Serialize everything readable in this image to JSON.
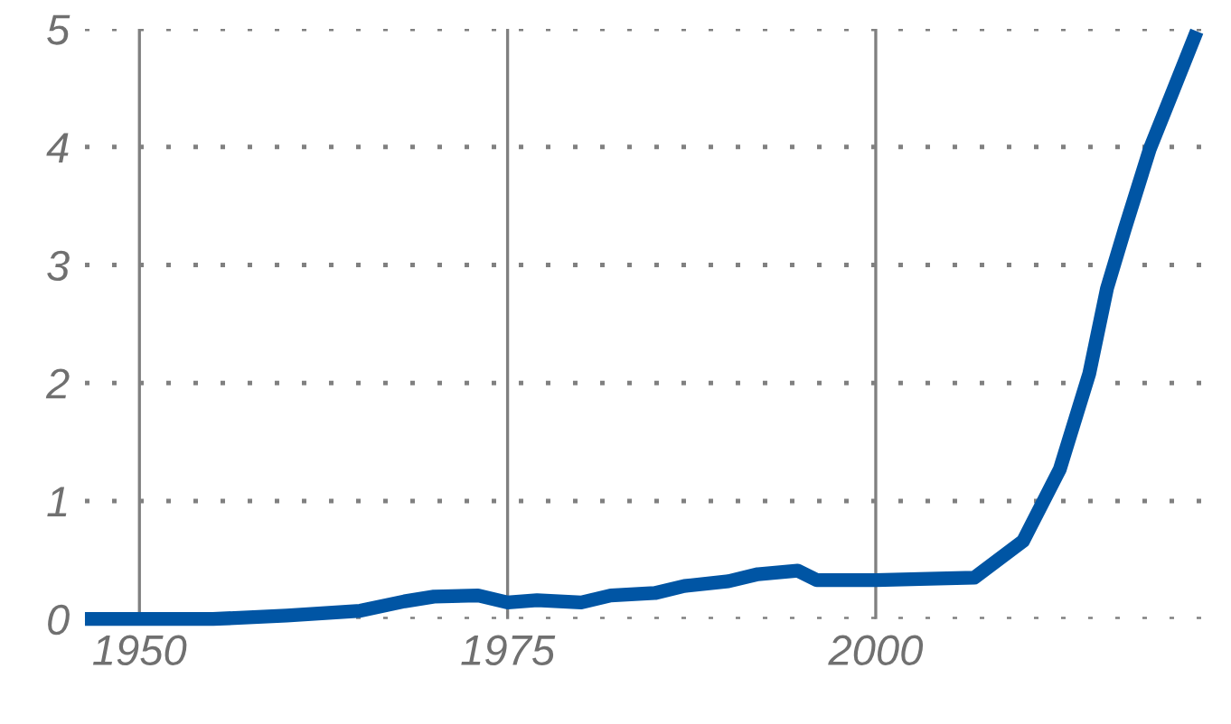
{
  "chart_data": {
    "type": "line",
    "x": [
      1946.3,
      1955,
      1960,
      1965,
      1968,
      1970,
      1973,
      1975,
      1977,
      1980,
      1982,
      1985,
      1987,
      1990,
      1992,
      1994.7,
      1996,
      2000,
      2003,
      2006.7,
      2010,
      2012.5,
      2014.5,
      2015.7,
      2016.9,
      2018.6,
      2020.2,
      2021.8
    ],
    "series": [
      {
        "color": "#0055a4",
        "values": [
          0,
          0,
          0.03,
          0.07,
          0.15,
          0.19,
          0.2,
          0.14,
          0.16,
          0.14,
          0.2,
          0.22,
          0.28,
          0.32,
          0.38,
          0.41,
          0.33,
          0.33,
          0.34,
          0.35,
          0.66,
          1.27,
          2.08,
          2.8,
          3.3,
          3.98,
          4.48,
          4.98
        ]
      }
    ],
    "xlim": [
      1946.3,
      2022.2
    ],
    "xticks": [
      1950,
      1975,
      2000
    ],
    "ylim": [
      0,
      5
    ],
    "yticks": [
      0,
      1,
      2,
      3,
      4,
      5
    ],
    "grid": true,
    "marker": "none",
    "line_style": "solid"
  }
}
